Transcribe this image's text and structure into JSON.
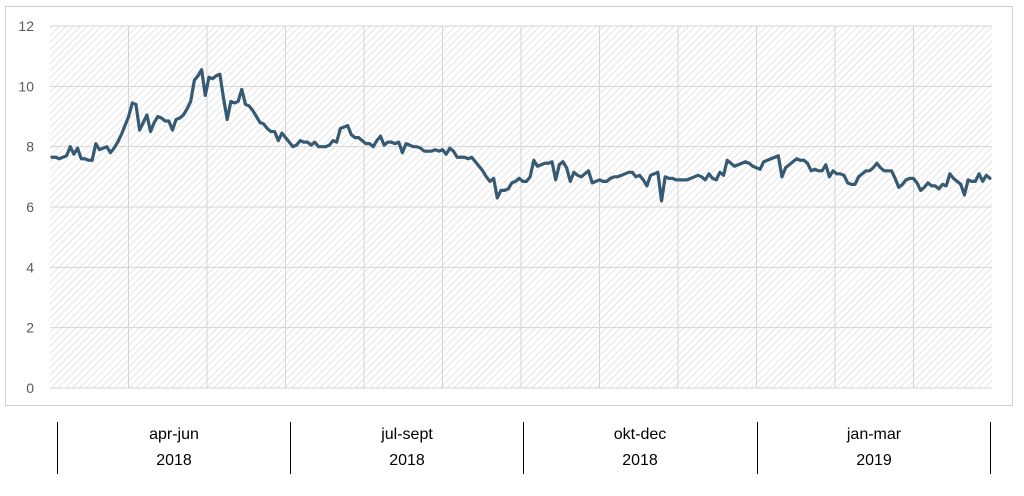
{
  "chart_data": {
    "type": "line",
    "title": "",
    "xlabel": "",
    "ylabel": "",
    "ylim": [
      0,
      12
    ],
    "y_ticks": [
      "0",
      "2",
      "4",
      "6",
      "8",
      "10",
      "12"
    ],
    "grid": true,
    "legend": "none",
    "series": [
      {
        "color": "#365a73",
        "values": [
          7.65,
          7.65,
          7.6,
          7.65,
          7.7,
          8.0,
          7.75,
          7.95,
          7.6,
          7.6,
          7.55,
          7.55,
          8.1,
          7.9,
          7.95,
          8.0,
          7.8,
          7.95,
          8.15,
          8.4,
          8.7,
          9.0,
          9.45,
          9.4,
          8.55,
          8.8,
          9.05,
          8.5,
          8.8,
          9.0,
          8.95,
          8.85,
          8.85,
          8.55,
          8.9,
          8.95,
          9.05,
          9.25,
          9.5,
          10.2,
          10.35,
          10.55,
          9.7,
          10.3,
          10.25,
          10.35,
          10.4,
          9.6,
          8.9,
          9.5,
          9.45,
          9.5,
          9.9,
          9.4,
          9.35,
          9.2,
          9.0,
          8.8,
          8.75,
          8.6,
          8.5,
          8.5,
          8.2,
          8.45,
          8.3,
          8.15,
          8.0,
          8.05,
          8.2,
          8.15,
          8.15,
          8.05,
          8.15,
          8.0,
          8.0,
          8.0,
          8.05,
          8.2,
          8.15,
          8.6,
          8.65,
          8.7,
          8.4,
          8.3,
          8.3,
          8.2,
          8.1,
          8.1,
          8.0,
          8.2,
          8.35,
          8.05,
          8.15,
          8.15,
          8.1,
          8.15,
          7.8,
          8.1,
          8.05,
          8.0,
          8.0,
          7.95,
          7.85,
          7.85,
          7.85,
          7.9,
          7.85,
          7.9,
          7.75,
          7.95,
          7.85,
          7.65,
          7.65,
          7.65,
          7.6,
          7.65,
          7.5,
          7.35,
          7.2,
          7.0,
          6.85,
          6.95,
          6.3,
          6.55,
          6.55,
          6.6,
          6.8,
          6.85,
          6.95,
          6.85,
          6.85,
          7.0,
          7.55,
          7.35,
          7.4,
          7.45,
          7.45,
          7.5,
          6.9,
          7.4,
          7.5,
          7.3,
          6.85,
          7.15,
          7.05,
          7.0,
          7.1,
          7.2,
          6.8,
          6.85,
          6.9,
          6.85,
          6.85,
          6.95,
          7.0,
          7.0,
          7.05,
          7.1,
          7.15,
          7.15,
          7.0,
          7.05,
          6.9,
          6.7,
          7.05,
          7.1,
          7.15,
          6.2,
          7.0,
          6.95,
          6.95,
          6.9,
          6.9,
          6.9,
          6.9,
          6.95,
          7.0,
          7.05,
          7.0,
          6.9,
          7.1,
          6.95,
          6.9,
          7.15,
          7.05,
          7.55,
          7.45,
          7.35,
          7.4,
          7.45,
          7.5,
          7.45,
          7.35,
          7.3,
          7.25,
          7.5,
          7.55,
          7.6,
          7.65,
          7.7,
          7.0,
          7.3,
          7.4,
          7.5,
          7.6,
          7.55,
          7.55,
          7.45,
          7.2,
          7.25,
          7.2,
          7.2,
          7.4,
          7.0,
          7.2,
          7.1,
          7.1,
          7.05,
          6.8,
          6.75,
          6.75,
          7.0,
          7.1,
          7.2,
          7.2,
          7.3,
          7.45,
          7.3,
          7.2,
          7.2,
          7.2,
          6.95,
          6.65,
          6.75,
          6.9,
          6.95,
          6.95,
          6.8,
          6.55,
          6.65,
          6.8,
          6.7,
          6.7,
          6.6,
          6.75,
          6.7,
          7.1,
          6.95,
          6.85,
          6.75,
          6.4,
          6.9,
          6.85,
          6.85,
          7.1,
          6.85,
          7.05,
          6.95
        ]
      }
    ],
    "periods": [
      {
        "quarter": "apr-jun",
        "year": "2018"
      },
      {
        "quarter": "jul-sept",
        "year": "2018"
      },
      {
        "quarter": "okt-dec",
        "year": "2018"
      },
      {
        "quarter": "jan-mar",
        "year": "2019"
      }
    ]
  }
}
